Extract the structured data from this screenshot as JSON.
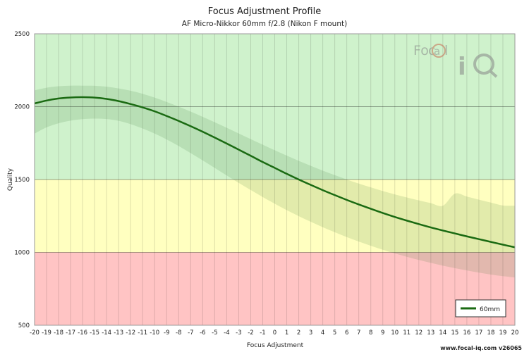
{
  "chart_data": {
    "type": "line",
    "title": "Focus Adjustment Profile",
    "subtitle": "AF Micro-Nikkor 60mm f/2.8 (Nikon F mount)",
    "xlabel": "Focus Adjustment",
    "ylabel": "Quality",
    "xlim": [
      -20,
      20
    ],
    "ylim": [
      500,
      2500
    ],
    "x_ticks": [
      -20,
      -19,
      -18,
      -17,
      -16,
      -15,
      -14,
      -13,
      -12,
      -11,
      -10,
      -9,
      -8,
      -7,
      -6,
      -5,
      -4,
      -3,
      -2,
      -1,
      0,
      1,
      2,
      3,
      4,
      5,
      6,
      7,
      8,
      9,
      10,
      11,
      12,
      13,
      14,
      15,
      16,
      17,
      18,
      19,
      20
    ],
    "y_ticks": [
      500,
      1000,
      1500,
      2000,
      2500
    ],
    "grid": true,
    "bands": [
      {
        "from": 500,
        "to": 1000,
        "color": "#ffc4c4"
      },
      {
        "from": 1000,
        "to": 1500,
        "color": "#ffffc0"
      },
      {
        "from": 1500,
        "to": 2500,
        "color": "#cff2cc"
      }
    ],
    "legend_position": "bottom-right",
    "series": [
      {
        "name": "60mm",
        "color": "#1a6a12",
        "x": [
          -20,
          -19,
          -18,
          -17,
          -16,
          -15,
          -14,
          -13,
          -12,
          -11,
          -10,
          -9,
          -8,
          -7,
          -6,
          -5,
          -4,
          -3,
          -2,
          -1,
          0,
          1,
          2,
          3,
          4,
          5,
          6,
          7,
          8,
          9,
          10,
          11,
          12,
          13,
          14,
          15,
          16,
          17,
          18,
          19,
          20
        ],
        "y": [
          2022,
          2042,
          2056,
          2063,
          2065,
          2062,
          2053,
          2038,
          2018,
          1995,
          1968,
          1936,
          1902,
          1866,
          1828,
          1788,
          1747,
          1705,
          1663,
          1620,
          1580,
          1539,
          1500,
          1463,
          1427,
          1393,
          1360,
          1329,
          1299,
          1270,
          1243,
          1218,
          1194,
          1171,
          1150,
          1130,
          1110,
          1091,
          1072,
          1053,
          1035
        ],
        "band_upper": [
          2112,
          2130,
          2140,
          2144,
          2144,
          2143,
          2137,
          2125,
          2109,
          2088,
          2062,
          2032,
          2000,
          1966,
          1930,
          1893,
          1855,
          1816,
          1777,
          1739,
          1701,
          1664,
          1628,
          1594,
          1561,
          1530,
          1500,
          1472,
          1446,
          1421,
          1398,
          1377,
          1357,
          1338,
          1320,
          1403,
          1383,
          1362,
          1342,
          1322,
          1320
        ],
        "band_lower": [
          1815,
          1858,
          1886,
          1904,
          1914,
          1918,
          1915,
          1903,
          1880,
          1850,
          1815,
          1775,
          1730,
          1681,
          1631,
          1580,
          1528,
          1477,
          1428,
          1380,
          1334,
          1290,
          1249,
          1210,
          1173,
          1138,
          1105,
          1074,
          1045,
          1018,
          993,
          970,
          948,
          928,
          909,
          892,
          876,
          861,
          848,
          837,
          828
        ]
      }
    ]
  },
  "watermark": {
    "text": "Focal iQ"
  },
  "credit": {
    "text": "www.focal-iq.com  v26065"
  }
}
